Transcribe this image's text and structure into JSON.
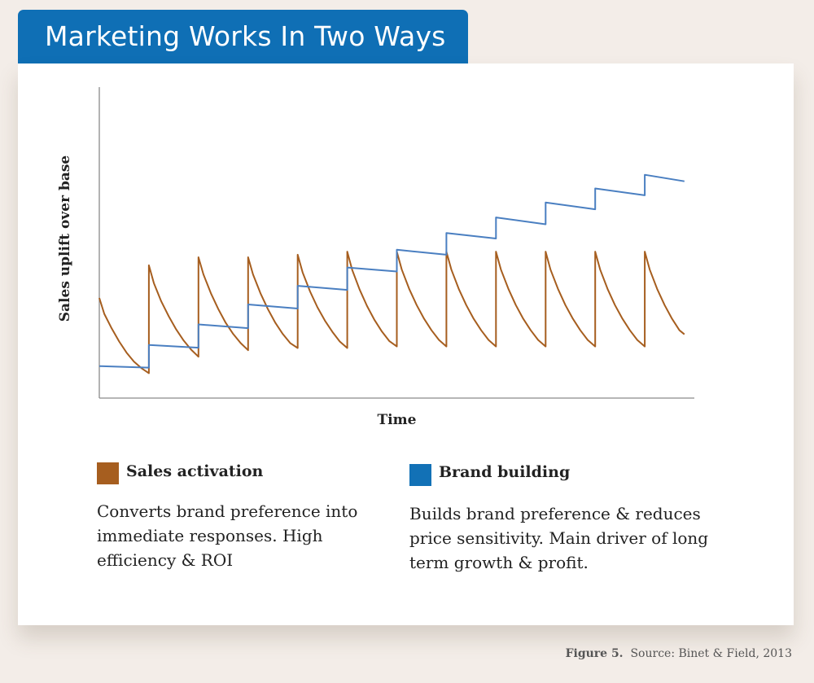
{
  "header": {
    "title": "Marketing Works In Two Ways"
  },
  "chart_data": {
    "type": "line",
    "xlabel": "Time",
    "ylabel": "Sales uplift over base",
    "xlim": [
      0,
      12
    ],
    "ylim": [
      0,
      100
    ],
    "grid": false,
    "series": [
      {
        "name": "Sales activation",
        "color": "#a65e1f",
        "points": [
          [
            0.0,
            32.2
          ],
          [
            0.1,
            27.1
          ],
          [
            0.25,
            22.4
          ],
          [
            0.4,
            18.2
          ],
          [
            0.55,
            14.6
          ],
          [
            0.7,
            11.7
          ],
          [
            0.85,
            9.6
          ],
          [
            1.0,
            8.0
          ],
          [
            1.0,
            42.7
          ],
          [
            1.1,
            37.0
          ],
          [
            1.25,
            31.1
          ],
          [
            1.4,
            26.3
          ],
          [
            1.55,
            22.1
          ],
          [
            1.7,
            18.5
          ],
          [
            1.85,
            15.6
          ],
          [
            2.0,
            13.3
          ],
          [
            2.0,
            45.3
          ],
          [
            2.1,
            39.8
          ],
          [
            2.25,
            33.7
          ],
          [
            2.4,
            28.6
          ],
          [
            2.55,
            24.2
          ],
          [
            2.7,
            20.6
          ],
          [
            2.85,
            17.7
          ],
          [
            3.0,
            15.4
          ],
          [
            3.0,
            45.3
          ],
          [
            3.1,
            39.8
          ],
          [
            3.25,
            33.7
          ],
          [
            3.4,
            28.6
          ],
          [
            3.55,
            24.2
          ],
          [
            3.7,
            20.6
          ],
          [
            3.85,
            17.7
          ],
          [
            4.0,
            16.1
          ],
          [
            4.0,
            46.1
          ],
          [
            4.1,
            40.4
          ],
          [
            4.25,
            34.3
          ],
          [
            4.4,
            29.2
          ],
          [
            4.55,
            24.9
          ],
          [
            4.7,
            21.3
          ],
          [
            4.85,
            18.2
          ],
          [
            5.0,
            16.1
          ],
          [
            5.0,
            47.1
          ],
          [
            5.1,
            41.2
          ],
          [
            5.25,
            34.9
          ],
          [
            5.4,
            29.6
          ],
          [
            5.55,
            25.1
          ],
          [
            5.7,
            21.4
          ],
          [
            5.85,
            18.3
          ],
          [
            6.0,
            16.6
          ],
          [
            6.0,
            47.1
          ],
          [
            6.1,
            41.3
          ],
          [
            6.25,
            35.1
          ],
          [
            6.4,
            29.9
          ],
          [
            6.55,
            25.5
          ],
          [
            6.7,
            21.8
          ],
          [
            6.85,
            18.7
          ],
          [
            7.0,
            16.6
          ],
          [
            7.0,
            47.1
          ],
          [
            7.1,
            41.3
          ],
          [
            7.25,
            35.1
          ],
          [
            7.4,
            29.9
          ],
          [
            7.55,
            25.5
          ],
          [
            7.7,
            21.8
          ],
          [
            7.85,
            18.7
          ],
          [
            8.0,
            16.6
          ],
          [
            8.0,
            47.1
          ],
          [
            8.1,
            41.3
          ],
          [
            8.25,
            35.1
          ],
          [
            8.4,
            29.9
          ],
          [
            8.55,
            25.5
          ],
          [
            8.7,
            21.8
          ],
          [
            8.85,
            18.7
          ],
          [
            9.0,
            16.6
          ],
          [
            9.0,
            47.1
          ],
          [
            9.1,
            41.3
          ],
          [
            9.25,
            35.1
          ],
          [
            9.4,
            29.9
          ],
          [
            9.55,
            25.5
          ],
          [
            9.7,
            21.8
          ],
          [
            9.85,
            18.7
          ],
          [
            10.0,
            16.6
          ],
          [
            10.0,
            47.1
          ],
          [
            10.1,
            41.3
          ],
          [
            10.25,
            35.1
          ],
          [
            10.4,
            29.9
          ],
          [
            10.55,
            25.5
          ],
          [
            10.7,
            21.8
          ],
          [
            10.85,
            18.7
          ],
          [
            11.0,
            16.6
          ],
          [
            11.0,
            47.1
          ],
          [
            11.1,
            41.3
          ],
          [
            11.25,
            35.1
          ],
          [
            11.4,
            29.9
          ],
          [
            11.55,
            25.5
          ],
          [
            11.7,
            21.8
          ],
          [
            11.8,
            20.5
          ]
        ]
      },
      {
        "name": "Brand building",
        "color": "#4a7fc1",
        "points": [
          [
            0.0,
            10.3
          ],
          [
            1.0,
            9.8
          ],
          [
            1.0,
            17.1
          ],
          [
            2.0,
            16.2
          ],
          [
            2.0,
            23.7
          ],
          [
            3.0,
            22.5
          ],
          [
            3.0,
            30.1
          ],
          [
            4.0,
            28.8
          ],
          [
            4.0,
            36.1
          ],
          [
            5.0,
            34.8
          ],
          [
            5.0,
            42.0
          ],
          [
            6.0,
            40.7
          ],
          [
            6.0,
            47.7
          ],
          [
            7.0,
            46.1
          ],
          [
            7.0,
            53.1
          ],
          [
            8.0,
            51.3
          ],
          [
            8.0,
            58.1
          ],
          [
            9.0,
            55.9
          ],
          [
            9.0,
            62.9
          ],
          [
            10.0,
            60.7
          ],
          [
            10.0,
            67.4
          ],
          [
            11.0,
            65.2
          ],
          [
            11.0,
            71.8
          ],
          [
            11.8,
            69.7
          ]
        ]
      }
    ]
  },
  "legend": {
    "sales": {
      "label": "Sales activation",
      "color": "#a65e1f",
      "description": "Converts brand preference into immediate responses. High efficiency & ROI"
    },
    "brand": {
      "label": "Brand building",
      "color": "#1271b6",
      "description": "Builds brand preference & reduces price sensitivity. Main driver of long term growth & profit."
    }
  },
  "footer": {
    "figure": "Figure 5.",
    "source": "Source: Binet & Field, 2013"
  }
}
